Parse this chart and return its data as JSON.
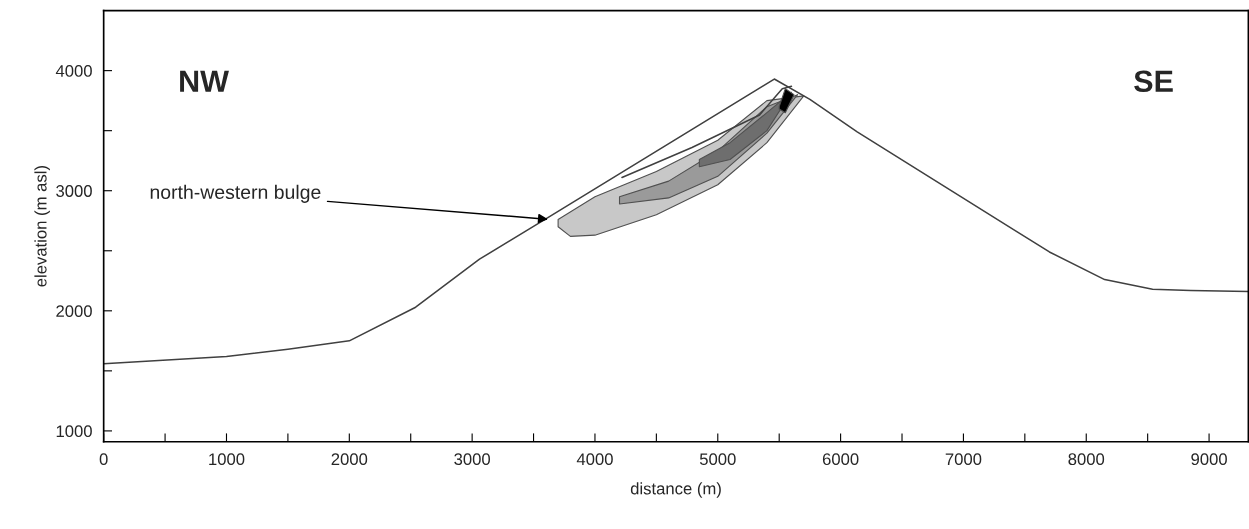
{
  "chart_data": {
    "type": "line",
    "xlabel": "distance (m)",
    "ylabel": "elevation (m asl)",
    "xlim": [
      0,
      9320
    ],
    "ylim": [
      910,
      4500
    ],
    "xticks": [
      0,
      {
        "value": 500,
        "label": null
      },
      1000,
      {
        "value": 1500,
        "label": null
      },
      2000,
      {
        "value": 2500,
        "label": null
      },
      3000,
      {
        "value": 3500,
        "label": null
      },
      4000,
      {
        "value": 4500,
        "label": null
      },
      5000,
      {
        "value": 5500,
        "label": null
      },
      6000,
      {
        "value": 6500,
        "label": null
      },
      7000,
      {
        "value": 7500,
        "label": null
      },
      8000,
      {
        "value": 8500,
        "label": null
      },
      9000
    ],
    "yticks": [
      1000,
      {
        "value": 1500,
        "label": null
      },
      2000,
      {
        "value": 2500,
        "label": null
      },
      3000,
      {
        "value": 3500,
        "label": null
      },
      4000
    ],
    "grid": false,
    "legend": false,
    "marker": "none",
    "line_style": "solid",
    "series": [
      {
        "type": "area",
        "color": "#c8c8c8",
        "x": [
          3700,
          4000,
          4500,
          5000,
          5400,
          5700,
          5400,
          5000,
          4500,
          4000,
          3800,
          3700
        ],
        "values": [
          2760,
          2950,
          3160,
          3420,
          3750,
          3790,
          3400,
          3050,
          2800,
          2630,
          2620,
          2700
        ]
      },
      {
        "type": "area",
        "color": "#9a9a9a",
        "x": [
          4200,
          4600,
          5000,
          5400,
          5650,
          5400,
          5000,
          4600,
          4200
        ],
        "values": [
          2950,
          3080,
          3330,
          3700,
          3800,
          3480,
          3120,
          2940,
          2890
        ]
      },
      {
        "type": "area",
        "color": "#6e6e6e",
        "x": [
          4850,
          5100,
          5400,
          5600,
          5400,
          5100,
          4850
        ],
        "values": [
          3260,
          3400,
          3650,
          3820,
          3500,
          3260,
          3200
        ]
      },
      {
        "type": "area",
        "color": "#000000",
        "x": [
          5500,
          5550,
          5620,
          5550,
          5500
        ],
        "values": [
          3700,
          3850,
          3800,
          3650,
          3680
        ]
      },
      {
        "color": "#404040",
        "x": [
          0,
          1000,
          1500,
          2000,
          2540,
          3060,
          3560,
          5460,
          5750,
          6135,
          7700,
          8150,
          8540,
          8850,
          9320
        ],
        "values": [
          1560,
          1620,
          1680,
          1750,
          2030,
          2430,
          2740,
          3930,
          3760,
          3490,
          2490,
          2260,
          2180,
          2170,
          2160
        ]
      },
      {
        "color": "#404040",
        "x": [
          4220,
          4790,
          5340,
          5525,
          5600
        ],
        "values": [
          3110,
          3360,
          3630,
          3850,
          3870
        ]
      }
    ],
    "annotations": [
      "NW",
      "SE",
      {
        "text": "north-western bulge",
        "x": 3640,
        "y": 2760
      }
    ]
  }
}
